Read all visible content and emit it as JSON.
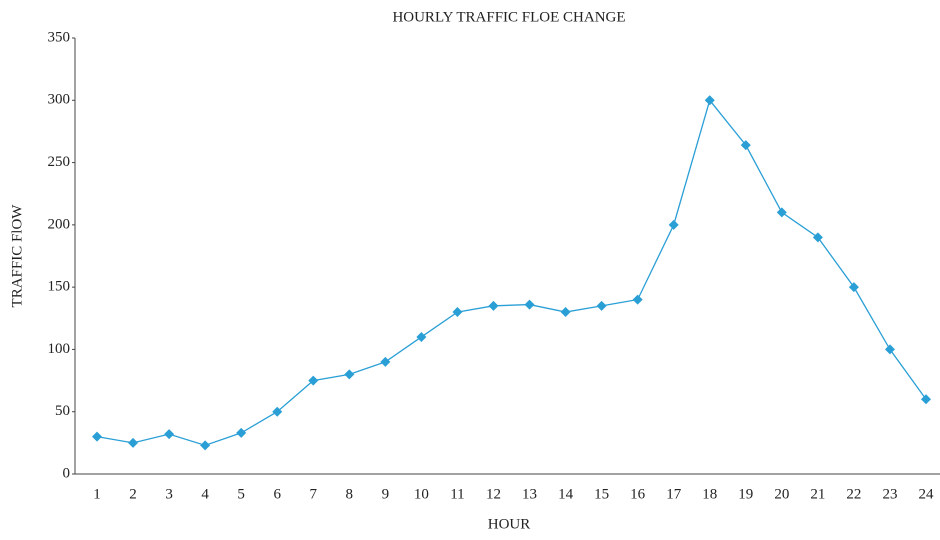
{
  "chart_data": {
    "type": "line",
    "title": "HOURLY TRAFFIC FLOE CHANGE",
    "x_label": "HOUR",
    "y_label": "TRAFFIC FlOW",
    "categories": [
      "1",
      "2",
      "3",
      "4",
      "5",
      "6",
      "7",
      "8",
      "9",
      "10",
      "11",
      "12",
      "13",
      "14",
      "15",
      "16",
      "17",
      "18",
      "19",
      "20",
      "21",
      "22",
      "23",
      "24"
    ],
    "series": [
      {
        "name": "Traffic flow",
        "color": "#2a9fd6",
        "values": [
          30,
          25,
          32,
          23,
          33,
          50,
          75,
          80,
          90,
          110,
          130,
          135,
          136,
          130,
          135,
          140,
          200,
          300,
          264,
          210,
          190,
          150,
          100,
          60
        ]
      }
    ],
    "ylim": [
      0,
      350
    ],
    "yticks": [
      0,
      50,
      100,
      150,
      200,
      250,
      300,
      350
    ],
    "grid": false,
    "marker": "diamond"
  }
}
